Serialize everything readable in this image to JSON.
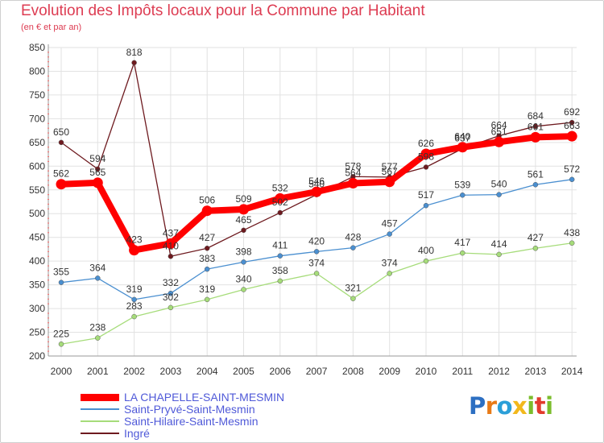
{
  "chart_data": {
    "type": "line",
    "title": "Evolution des Impôts locaux pour la Commune par Habitant",
    "subtitle": "(en € et par an)",
    "xlabel": "",
    "ylabel": "",
    "ylim": [
      200,
      850
    ],
    "y_ticks": [
      200,
      250,
      300,
      350,
      400,
      450,
      500,
      550,
      600,
      650,
      700,
      750,
      800,
      850
    ],
    "grid": true,
    "legend_position": "bottom-left",
    "categories": [
      "2000",
      "2001",
      "2002",
      "2003",
      "2004",
      "2005",
      "2006",
      "2007",
      "2008",
      "2009",
      "2010",
      "2011",
      "2012",
      "2013",
      "2014"
    ],
    "series": [
      {
        "name": "Ingré",
        "color": "#6e1a1f",
        "values": [
          650,
          594,
          818,
          410,
          427,
          465,
          502,
          540,
          578,
          577,
          598,
          637,
          664,
          684,
          692
        ],
        "labels": [
          "650",
          "594",
          "818",
          "410",
          "427",
          "465",
          "502",
          "540",
          "578",
          "577",
          "598",
          "637",
          "664",
          "684",
          "692"
        ]
      },
      {
        "name": "LA CHAPELLE-SAINT-MESMIN",
        "color": "#ff0000",
        "values": [
          562,
          565,
          423,
          437,
          506,
          509,
          532,
          546,
          564,
          567,
          626,
          640,
          651,
          661,
          663
        ],
        "labels": [
          "562",
          "565",
          "423",
          "437",
          "506",
          "509",
          "532",
          "546",
          "564",
          "567",
          "626",
          "640",
          "651",
          "661",
          "663"
        ]
      },
      {
        "name": "Saint-Pryvé-Saint-Mesmin",
        "color": "#4a8fd0",
        "values": [
          355,
          364,
          319,
          332,
          383,
          398,
          411,
          420,
          428,
          457,
          517,
          539,
          540,
          561,
          572
        ],
        "labels": [
          "355",
          "364",
          "319",
          "332",
          "383",
          "398",
          "411",
          "420",
          "428",
          "457",
          "517",
          "539",
          "540",
          "561",
          "572"
        ]
      },
      {
        "name": "Saint-Hilaire-Saint-Mesmin",
        "color": "#a6dc7a",
        "values": [
          225,
          238,
          283,
          302,
          319,
          340,
          358,
          374,
          321,
          374,
          400,
          417,
          414,
          427,
          438
        ],
        "labels": [
          "225",
          "238",
          "283",
          "302",
          "319",
          "340",
          "358",
          "374",
          "321",
          "374",
          "400",
          "417",
          "414",
          "427",
          "438"
        ]
      }
    ]
  },
  "legend": {
    "items": [
      {
        "label": "LA CHAPELLE-SAINT-MESMIN",
        "color": "#ff0000"
      },
      {
        "label": "Saint-Pryvé-Saint-Mesmin",
        "color": "#4a8fd0"
      },
      {
        "label": "Saint-Hilaire-Saint-Mesmin",
        "color": "#a6dc7a"
      },
      {
        "label": "Ingré",
        "color": "#6e1a1f"
      }
    ]
  },
  "brand": {
    "letters": [
      "P",
      "r",
      "o",
      "x",
      "i",
      "t",
      "i"
    ],
    "colors": [
      "#2d6fc2",
      "#e87a17",
      "#2b9fd8",
      "#f2b81c",
      "#7bbd2c",
      "#e23b2d",
      "#7bbd2c"
    ]
  }
}
